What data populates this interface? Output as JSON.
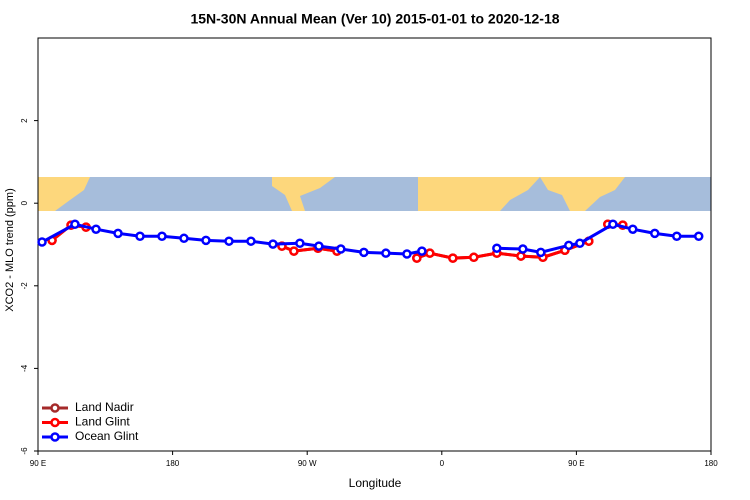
{
  "chart_data": {
    "type": "line",
    "title": "15N-30N Annual Mean (Ver 10)   2015-01-01 to 2020-12-18",
    "x_label": "Longitude",
    "y_label": "XCO2 - MLO trend (ppm)",
    "xlim": [
      90,
      540
    ],
    "ylim": [
      -6,
      4
    ],
    "xticks": [
      {
        "value": 90,
        "label": "90 E"
      },
      180,
      {
        "value": 270,
        "label": "90 W"
      },
      {
        "value": 360,
        "label": "0"
      },
      {
        "value": 450,
        "label": "90 E"
      },
      {
        "value": 540,
        "label": "180"
      }
    ],
    "yticks": [
      -6,
      -4,
      -2,
      0,
      2
    ],
    "legend": "bottom-left",
    "series": [
      {
        "name": "Land Nadir",
        "color": "#a52a2a",
        "x": [
          99.4,
          112.1,
          122.1,
          200,
          253.1,
          261.1,
          277.2,
          289.9,
          320,
          343.3,
          352.0,
          367.4,
          381.4,
          396.8,
          412.9,
          427.6,
          442.3,
          458.3,
          465,
          471.0,
          481.0
        ],
        "values": [
          -0.9,
          -0.53,
          -0.58,
          null,
          -1.04,
          -1.16,
          -1.09,
          -1.16,
          null,
          -1.33,
          -1.21,
          -1.33,
          -1.31,
          -1.21,
          -1.28,
          -1.31,
          -1.14,
          -0.92,
          null,
          -0.51,
          -0.53
        ]
      },
      {
        "name": "Land Glint",
        "color": "#ff0000",
        "x": [
          99.4,
          112.1,
          122.1,
          200,
          253.1,
          261.1,
          277.2,
          289.9,
          320,
          343.3,
          352.0,
          367.4,
          381.4,
          396.8,
          412.9,
          427.6,
          442.3,
          458.3,
          465,
          471.0,
          481.0
        ],
        "values": [
          -0.9,
          -0.53,
          -0.58,
          null,
          -1.04,
          -1.16,
          -1.09,
          -1.16,
          null,
          -1.33,
          -1.21,
          -1.33,
          -1.31,
          -1.21,
          -1.28,
          -1.31,
          -1.14,
          -0.92,
          null,
          -0.51,
          -0.53
        ]
      },
      {
        "name": "Ocean Glint",
        "color": "#0000ff",
        "x": [
          92.7,
          114.7,
          128.8,
          143.5,
          158.2,
          172.9,
          187.6,
          202.3,
          217.7,
          232.4,
          247.1,
          265.1,
          277.8,
          292.5,
          307.9,
          322.6,
          336.7,
          346.7,
          370,
          396.8,
          414.2,
          426.2,
          444.9,
          452.3,
          474.4,
          487.7,
          502.4,
          517.1,
          531.8
        ],
        "values": [
          -0.94,
          -0.51,
          -0.63,
          -0.73,
          -0.8,
          -0.8,
          -0.85,
          -0.9,
          -0.92,
          -0.92,
          -0.99,
          -0.97,
          -1.04,
          -1.11,
          -1.19,
          -1.21,
          -1.23,
          -1.16,
          null,
          -1.09,
          -1.11,
          -1.19,
          -1.02,
          -0.97,
          -0.51,
          -0.63,
          -0.73,
          -0.8,
          -0.8
        ]
      }
    ]
  }
}
